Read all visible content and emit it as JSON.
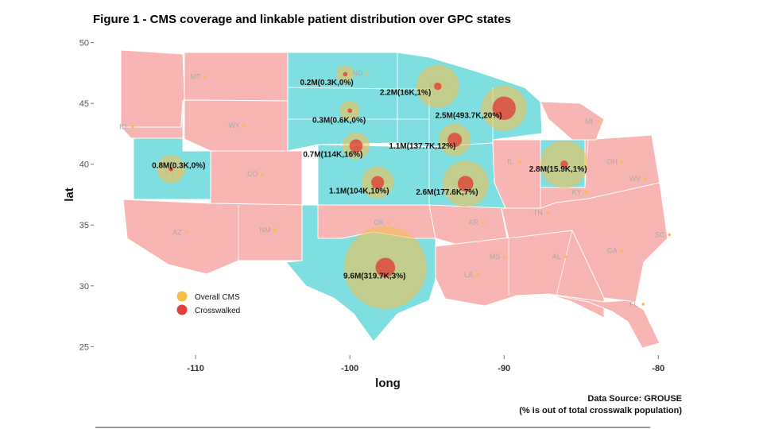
{
  "title": "Figure 1 - CMS coverage and linkable patient distribution over GPC states",
  "xlabel": "long",
  "ylabel": "lat",
  "x_ticks": [
    -110,
    -100,
    -90,
    -80
  ],
  "y_ticks": [
    25,
    30,
    35,
    40,
    45,
    50
  ],
  "xlim": [
    -116.5,
    -79.5
  ],
  "ylim": [
    24.5,
    50.3
  ],
  "colors": {
    "gpc_state": "#7fdfe0",
    "other_state": "#f7b5b3",
    "overall_cms": "#f9bd4a",
    "crosswalked": "#e0413a",
    "state_border": "#ffffff"
  },
  "legend": {
    "overall_label": "Overall CMS",
    "crosswalked_label": "Crosswalked"
  },
  "source_lines": [
    "Data Source: GROUSE",
    "(% is out of total crosswalk population)"
  ],
  "state_abbrs": [
    {
      "abbr": "ND",
      "lon": -99.5,
      "lat": 47.3
    },
    {
      "abbr": "MN",
      "lon": -94.5,
      "lat": 46.3
    },
    {
      "abbr": "MT",
      "lon": -110.0,
      "lat": 47.0
    },
    {
      "abbr": "WY",
      "lon": -107.5,
      "lat": 43.0
    },
    {
      "abbr": "MI",
      "lon": -84.5,
      "lat": 43.3
    },
    {
      "abbr": "ID",
      "lon": -114.7,
      "lat": 42.9
    },
    {
      "abbr": "UT",
      "lon": -111.7,
      "lat": 39.1
    },
    {
      "abbr": "CO",
      "lon": -106.3,
      "lat": 39.0
    },
    {
      "abbr": "IL",
      "lon": -89.6,
      "lat": 40.0
    },
    {
      "abbr": "OH",
      "lon": -83.0,
      "lat": 40.0
    },
    {
      "abbr": "WV",
      "lon": -81.5,
      "lat": 38.6
    },
    {
      "abbr": "KY",
      "lon": -85.3,
      "lat": 37.5
    },
    {
      "abbr": "TN",
      "lon": -87.8,
      "lat": 35.8
    },
    {
      "abbr": "AR",
      "lon": -92.0,
      "lat": 35.0
    },
    {
      "abbr": "OK",
      "lon": -98.1,
      "lat": 35.0
    },
    {
      "abbr": "AZ",
      "lon": -111.2,
      "lat": 34.2
    },
    {
      "abbr": "NM",
      "lon": -105.5,
      "lat": 34.4
    },
    {
      "abbr": "MS",
      "lon": -90.6,
      "lat": 32.2
    },
    {
      "abbr": "AL",
      "lon": -86.6,
      "lat": 32.2
    },
    {
      "abbr": "GA",
      "lon": -83.0,
      "lat": 32.7
    },
    {
      "abbr": "SC",
      "lon": -79.9,
      "lat": 34.0
    },
    {
      "abbr": "LA",
      "lon": -92.3,
      "lat": 30.7
    },
    {
      "abbr": "FL",
      "lon": -81.6,
      "lat": 28.3
    },
    {
      "abbr": "TX",
      "lon": -97.8,
      "lat": 31.5
    }
  ],
  "bubbles": [
    {
      "state": "ND",
      "lon": -100.3,
      "lat": 47.4,
      "overall_m": 0.2,
      "crosswalked_k": 0.3,
      "label": "0.2M(0.3K,0%)",
      "label_lon": -101.5,
      "label_lat": 46.5
    },
    {
      "state": "SD",
      "lon": -100.0,
      "lat": 44.4,
      "overall_m": 0.3,
      "crosswalked_k": 0.6,
      "label": "0.3M(0.6K,0%)",
      "label_lon": -100.7,
      "label_lat": 43.4
    },
    {
      "state": "MN",
      "lon": -94.3,
      "lat": 46.4,
      "overall_m": 2.2,
      "crosswalked_k": 16,
      "label": "2.2M(16K,1%)",
      "label_lon": -96.4,
      "label_lat": 45.7
    },
    {
      "state": "WI",
      "lon": -90.0,
      "lat": 44.6,
      "overall_m": 2.5,
      "crosswalked_k": 493.7,
      "label": "2.5M(493.7K,20%)",
      "label_lon": -92.3,
      "label_lat": 43.8
    },
    {
      "state": "IA",
      "lon": -93.2,
      "lat": 42.0,
      "overall_m": 1.1,
      "crosswalked_k": 137.7,
      "label": "1.1M(137.7K,12%)",
      "label_lon": -95.3,
      "label_lat": 41.3
    },
    {
      "state": "NE",
      "lon": -99.6,
      "lat": 41.5,
      "overall_m": 0.7,
      "crosswalked_k": 114,
      "label": "0.7M(114K,16%)",
      "label_lon": -101.1,
      "label_lat": 40.6
    },
    {
      "state": "UT",
      "lon": -111.6,
      "lat": 39.6,
      "overall_m": 0.8,
      "crosswalked_k": 0.3,
      "label": "0.8M(0.3K,0%)",
      "label_lon": -111.1,
      "label_lat": 39.7
    },
    {
      "state": "KS",
      "lon": -98.2,
      "lat": 38.5,
      "overall_m": 1.1,
      "crosswalked_k": 104,
      "label": "1.1M(104K,10%)",
      "label_lon": -99.4,
      "label_lat": 37.6
    },
    {
      "state": "MO",
      "lon": -92.5,
      "lat": 38.4,
      "overall_m": 2.6,
      "crosswalked_k": 177.6,
      "label": "2.6M(177.6K,7%)",
      "label_lon": -93.7,
      "label_lat": 37.5
    },
    {
      "state": "IN",
      "lon": -86.1,
      "lat": 40.0,
      "overall_m": 2.8,
      "crosswalked_k": 15.9,
      "label": "2.8M(15.9K,1%)",
      "label_lon": -86.5,
      "label_lat": 39.4
    },
    {
      "state": "TX",
      "lon": -97.7,
      "lat": 31.5,
      "overall_m": 9.6,
      "crosswalked_k": 319.7,
      "label": "9.6M(319.7K,3%)",
      "label_lon": -98.4,
      "label_lat": 30.6
    }
  ]
}
